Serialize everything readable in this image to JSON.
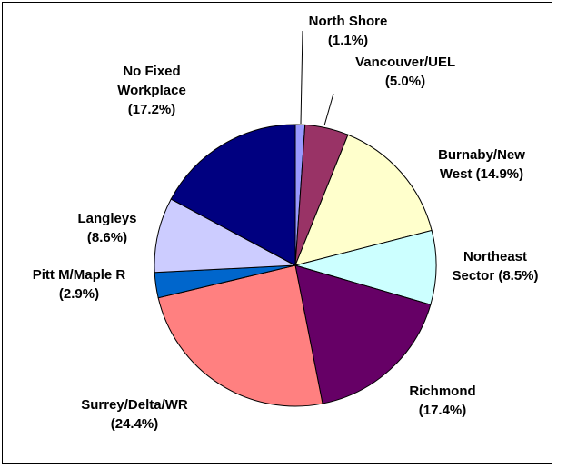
{
  "chart_data": {
    "type": "pie",
    "categories": [
      "North Shore",
      "Vancouver/UEL",
      "Burnaby/New West",
      "Northeast Sector",
      "Richmond",
      "Surrey/Delta/WR",
      "Pitt M/Maple R",
      "Langleys",
      "No Fixed Workplace"
    ],
    "values": [
      1.1,
      5.0,
      14.9,
      8.5,
      17.4,
      24.4,
      2.9,
      8.6,
      17.2
    ],
    "value_labels": [
      "(1.1%)",
      "(5.0%)",
      "(14.9%)",
      "(8.5%)",
      "(17.4%)",
      "(24.4%)",
      "(2.9%)",
      "(8.6%)",
      "(17.2%)"
    ],
    "colors": [
      "#9999ff",
      "#993366",
      "#ffffcc",
      "#ccffff",
      "#660066",
      "#ff8080",
      "#0066cc",
      "#ccccff",
      "#000080"
    ]
  }
}
